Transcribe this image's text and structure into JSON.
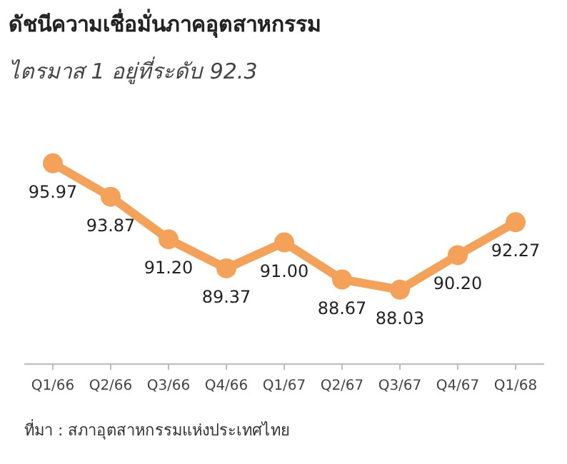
{
  "chart_data": {
    "type": "line",
    "title": "ดัชนีความเชื่อมั่นภาคอุตสาหกรรม",
    "subtitle": "ไตรมาส 1 อยู่ที่ระดับ 92.3",
    "categories": [
      "Q1/66",
      "Q2/66",
      "Q3/66",
      "Q4/66",
      "Q1/67",
      "Q2/67",
      "Q3/67",
      "Q4/67",
      "Q1/68"
    ],
    "series": [
      {
        "color": "#f4a259",
        "values": [
          95.97,
          93.87,
          91.2,
          89.37,
          91.0,
          88.67,
          88.03,
          90.2,
          92.27
        ],
        "value_labels": [
          "95.97",
          "93.87",
          "91.20",
          "89.37",
          "91.00",
          "88.67",
          "88.03",
          "90.20",
          "92.27"
        ]
      }
    ],
    "marker": "circle",
    "line_style": "solid",
    "annotations": [
      "ที่มา : สภาอุตสาหกรรมแห่งประเทศไทย"
    ]
  }
}
